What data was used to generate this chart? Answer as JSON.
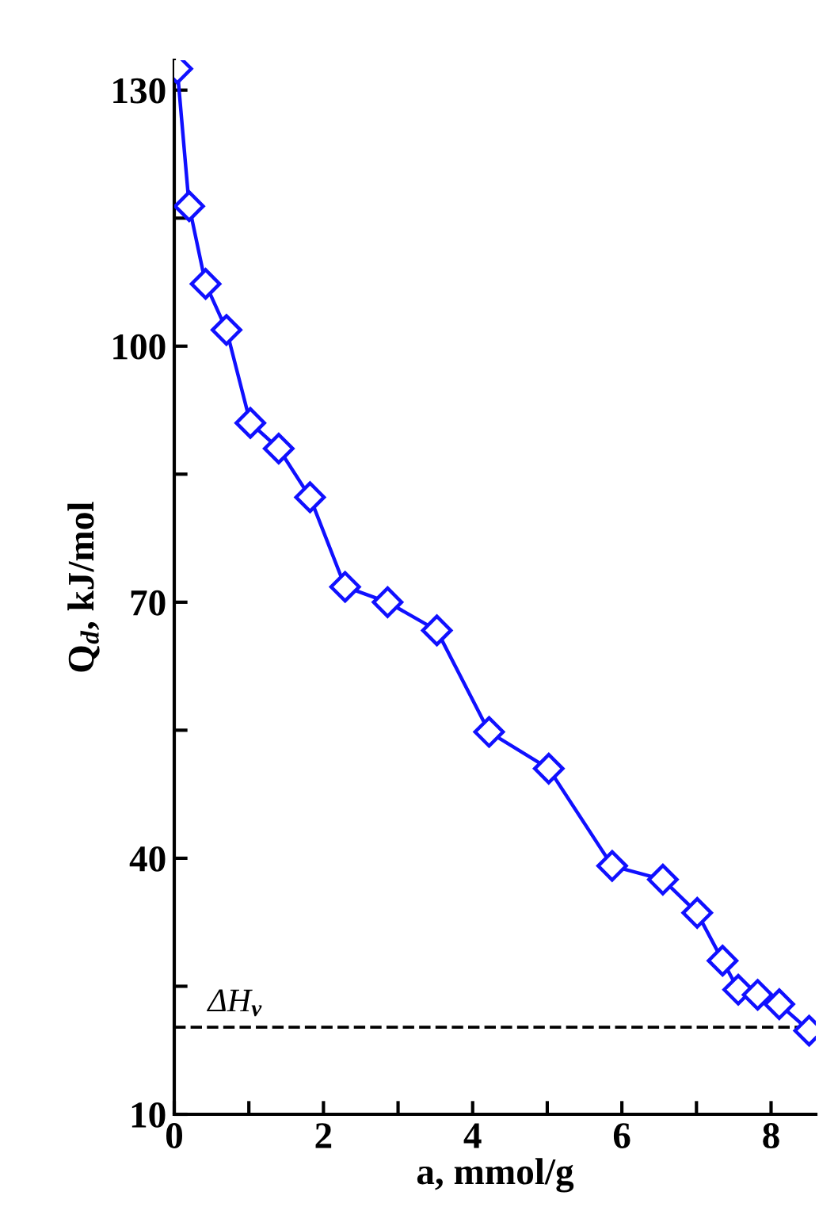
{
  "chart_data": {
    "type": "line",
    "xlabel": "a, mmol/g",
    "ylabel": "Q$_{d}$, kJ/mol",
    "x": [
      0.04,
      0.2,
      0.42,
      0.7,
      1.02,
      1.4,
      1.82,
      2.29,
      2.86,
      3.52,
      4.22,
      5.02,
      5.87,
      6.55,
      7.01,
      7.35,
      7.56,
      7.82,
      8.11,
      8.51
    ],
    "series": [
      {
        "color": "#1010ff",
        "values": [
          132.5,
          116.4,
          107.3,
          101.9,
          91.0,
          88.0,
          82.3,
          71.8,
          70.0,
          66.7,
          54.8,
          50.5,
          39.1,
          37.5,
          33.6,
          28.0,
          24.6,
          24.0,
          22.9,
          19.8
        ]
      }
    ],
    "marker": "diamond",
    "line_style": "solid",
    "grid": false,
    "legend": false,
    "xlim": [
      0,
      8.6
    ],
    "ylim": [
      10,
      133.5
    ],
    "xticks": [
      0,
      {
        "value": 1,
        "label": null
      },
      2,
      {
        "value": 3,
        "label": null
      },
      4,
      {
        "value": 5,
        "label": null
      },
      6,
      {
        "value": 7,
        "label": null
      },
      8
    ],
    "yticks": [
      10,
      {
        "value": 25,
        "label": null
      },
      40,
      {
        "value": 55,
        "label": null
      },
      70,
      {
        "value": 85,
        "label": null
      },
      100,
      {
        "value": 115,
        "label": null
      },
      130
    ],
    "ref_lines": [
      {
        "axis": "y",
        "value": 20.2,
        "label": "ΔH$_{v}$",
        "color": "#000000",
        "line_style": "dashed"
      }
    ]
  }
}
